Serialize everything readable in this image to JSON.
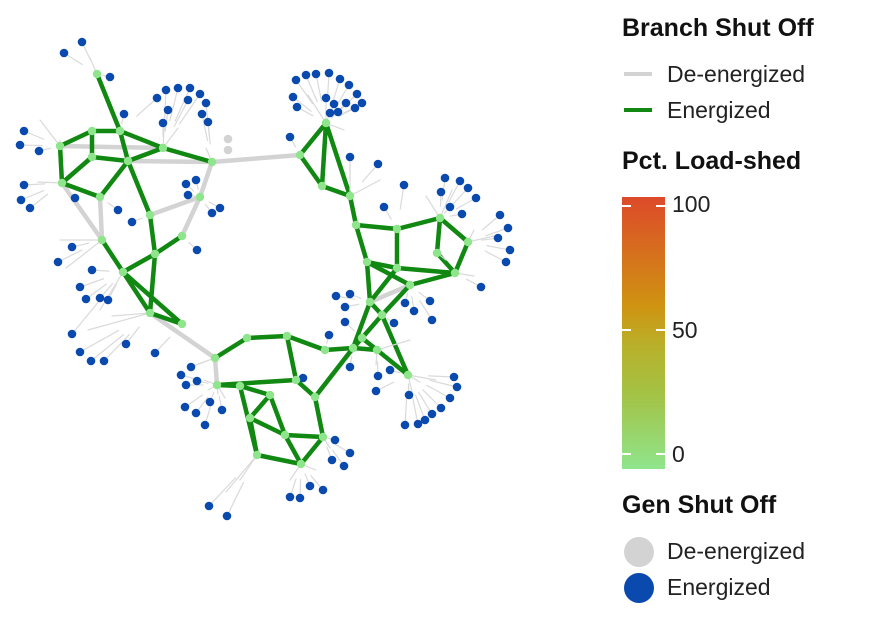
{
  "legend": {
    "branch": {
      "title": "Branch Shut Off",
      "items": [
        {
          "label": "De-energized",
          "color": "#d3d3d3"
        },
        {
          "label": "Energized",
          "color": "#118811"
        }
      ]
    },
    "load": {
      "title": "Pct. Load-shed",
      "ticks": [
        "100",
        "50",
        "0"
      ],
      "low_color": "#8fe58c",
      "high_color": "#dd4a2a"
    },
    "gen": {
      "title": "Gen Shut Off",
      "items": [
        {
          "label": "De-energized",
          "color": "#d3d3d3"
        },
        {
          "label": "Energized",
          "color": "#0a4aae"
        }
      ]
    }
  }
}
